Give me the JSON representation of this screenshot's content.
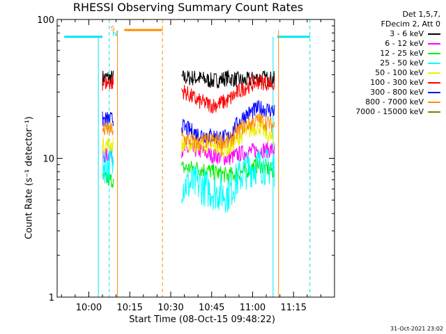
{
  "chart_data": {
    "type": "line",
    "title": "RHESSI Observing Summary Count Rates",
    "xlabel": "Start Time (08-Oct-15 09:48:22)",
    "ylabel": "Count Rate (s⁻¹ detector⁻¹)",
    "y_scale": "log",
    "ylim": [
      1,
      100
    ],
    "xlim": [
      "09:48:22",
      "11:30:00"
    ],
    "x_tick_labels": [
      "10:00",
      "10:15",
      "10:30",
      "10:45",
      "11:00",
      "11:15"
    ],
    "x_tick_minutes": [
      0,
      15,
      30,
      45,
      60,
      75
    ],
    "y_tick_labels": [
      "1",
      "10",
      "100"
    ],
    "y_tick_values": [
      1,
      10,
      100
    ],
    "legend_header": [
      "Det 1,5,7,",
      "FDecim 2, Att 0"
    ],
    "legend_position": "top-right",
    "series": [
      {
        "name": "3 - 6 keV",
        "color": "#000000",
        "segments": [
          {
            "t": [
              5,
              9
            ],
            "y": [
              38,
              38
            ]
          },
          {
            "t": [
              34,
              68
            ],
            "y": [
              38,
              38,
              36,
              38,
              36,
              38,
              37
            ]
          }
        ]
      },
      {
        "name": "6 - 12 keV",
        "color": "#ff00ff",
        "segments": [
          {
            "t": [
              5,
              9
            ],
            "y": [
              10.5,
              10.5
            ]
          },
          {
            "t": [
              34,
              68
            ],
            "y": [
              11.5,
              11.5,
              10.5,
              10,
              11,
              11.5,
              11.5
            ]
          }
        ]
      },
      {
        "name": "12 - 25 keV",
        "color": "#00ee00",
        "segments": [
          {
            "t": [
              5,
              9
            ],
            "y": [
              7,
              7
            ]
          },
          {
            "t": [
              34,
              68
            ],
            "y": [
              8.5,
              8.5,
              8,
              7.5,
              8,
              9,
              8
            ]
          }
        ]
      },
      {
        "name": "25 - 50 keV",
        "color": "#00ffff",
        "segments": [
          {
            "t": [
              5,
              9
            ],
            "y": [
              9,
              9
            ]
          },
          {
            "t": [
              34,
              68
            ],
            "y": [
              6.5,
              6.5,
              5.8,
              5.5,
              8,
              9,
              8.5
            ]
          }
        ]
      },
      {
        "name": "50 - 100 keV",
        "color": "#eeee00",
        "segments": [
          {
            "t": [
              5,
              9
            ],
            "y": [
              12.5,
              12.5
            ]
          },
          {
            "t": [
              34,
              68
            ],
            "y": [
              12.5,
              12.5,
              12,
              11.5,
              15,
              17,
              13
            ]
          }
        ]
      },
      {
        "name": "100 - 300 keV",
        "color": "#ff0000",
        "segments": [
          {
            "t": [
              5,
              9
            ],
            "y": [
              35,
              35
            ]
          },
          {
            "t": [
              34,
              68
            ],
            "y": [
              31,
              26,
              24,
              26,
              32,
              36,
              34
            ]
          }
        ]
      },
      {
        "name": "300 - 800 keV",
        "color": "#0000ff",
        "segments": [
          {
            "t": [
              5,
              9
            ],
            "y": [
              19,
              19
            ]
          },
          {
            "t": [
              34,
              68
            ],
            "y": [
              17,
              15,
              14.5,
              14,
              20,
              23,
              22
            ]
          }
        ]
      },
      {
        "name": "800 - 7000 keV",
        "color": "#ff8c00",
        "segments": [
          {
            "t": [
              5,
              9
            ],
            "y": [
              16,
              16
            ]
          },
          {
            "t": [
              34,
              68
            ],
            "y": [
              14,
              13,
              13.5,
              13,
              17,
              19,
              17
            ]
          }
        ]
      },
      {
        "name": "7000 - 15000 keV",
        "color": "#808000",
        "segments": []
      }
    ],
    "x_segment_t": [
      34,
      39.7,
      45.3,
      51,
      56.7,
      62.3,
      68
    ],
    "flags": {
      "saa_label": "S",
      "night_label": "N",
      "night_level": 75,
      "night_color": "#00e5ee",
      "saa_level": 84,
      "saa_color": "#ff8c00",
      "night_bars": [
        [
          -9,
          5
        ],
        [
          69,
          81
        ]
      ],
      "saa_bar": [
        13,
        27
      ],
      "night_dashed_lines": [
        7.5,
        81
      ],
      "saa_dashed_lines": [
        27
      ],
      "solid_lines_cyan": [
        3.5,
        67.5
      ],
      "solid_lines_orange": [
        10.5,
        69.5
      ]
    }
  },
  "footer": {
    "timestamp": "31-Oct-2021 23:02"
  }
}
